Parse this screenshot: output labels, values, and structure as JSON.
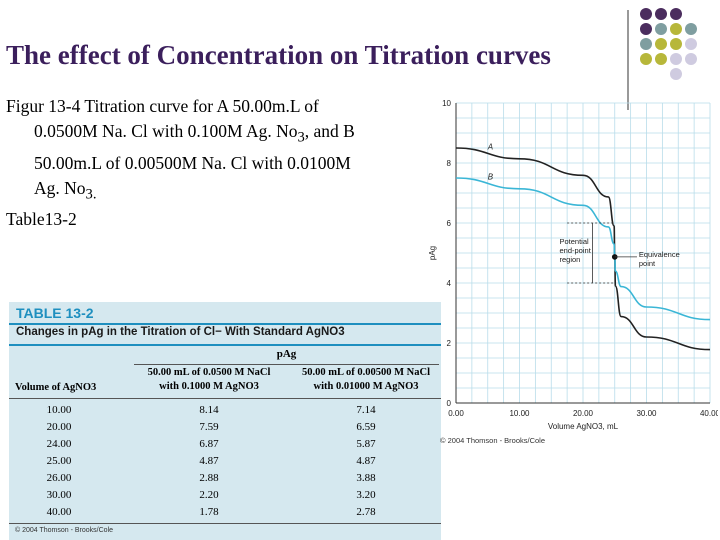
{
  "slide": {
    "title": "The effect of Concentration on Titration curves",
    "caption": {
      "line1": "Figur 13-4 Titration curve for A 50.00m.L of",
      "line2a": "0.0500M Na. Cl with 0.100M Ag. No",
      "line2sub": "3",
      "line2b": ", and B",
      "line3": "50.00m.L of 0.00500M Na. Cl with 0.0100M",
      "line4a": "Ag. No",
      "line4sub": "3.",
      "line5": "Table13-2"
    }
  },
  "decor": {
    "colors": {
      "purple": "#4b2d5e",
      "teal": "#7f9ea0",
      "olive": "#b7b73a",
      "lavender": "#cfcbe0"
    },
    "grid": [
      [
        "purple",
        "purple",
        "purple",
        ""
      ],
      [
        "purple",
        "teal",
        "olive",
        "teal"
      ],
      [
        "teal",
        "olive",
        "olive",
        "lavender"
      ],
      [
        "olive",
        "olive",
        "lavender",
        "lavender"
      ],
      [
        "",
        "",
        "lavender",
        ""
      ]
    ]
  },
  "table": {
    "label": "TABLE 13-2",
    "title": "Changes in pAg in the Titration of Cl− With Standard AgNO3",
    "pag_header": "pAg",
    "col0": "Volume of AgNO3",
    "col1_line1": "50.00 mL of 0.0500 M NaCl",
    "col1_line2": "with 0.1000 M AgNO3",
    "col2_line1": "50.00 mL of 0.00500 M NaCl",
    "col2_line2": "with 0.01000 M AgNO3",
    "rows": [
      [
        "10.00",
        "8.14",
        "7.14"
      ],
      [
        "20.00",
        "7.59",
        "6.59"
      ],
      [
        "24.00",
        "6.87",
        "5.87"
      ],
      [
        "25.00",
        "4.87",
        "4.87"
      ],
      [
        "26.00",
        "2.88",
        "3.88"
      ],
      [
        "30.00",
        "2.20",
        "3.20"
      ],
      [
        "40.00",
        "1.78",
        "2.78"
      ]
    ],
    "credit": "© 2004 Thomson - Brooks/Cole"
  },
  "chart_data": {
    "type": "line",
    "xlabel": "Volume AgNO3, mL",
    "ylabel": "pAg",
    "xlim": [
      0,
      40
    ],
    "ylim": [
      0,
      10
    ],
    "x_ticks": [
      "0.00",
      "10.00",
      "20.00",
      "30.00",
      "40.00"
    ],
    "y_ticks": [
      "0",
      "2",
      "4",
      "6",
      "8",
      "10"
    ],
    "grid": true,
    "series": [
      {
        "name": "A",
        "color": "#222222",
        "x": [
          0,
          10,
          20,
          24,
          24.9,
          25,
          25.1,
          26,
          30,
          40
        ],
        "y": [
          8.5,
          8.14,
          7.59,
          6.87,
          5.9,
          4.87,
          3.9,
          2.88,
          2.2,
          1.78
        ]
      },
      {
        "name": "B",
        "color": "#3ab6d6",
        "x": [
          0,
          10,
          20,
          24,
          24.9,
          25,
          25.1,
          26,
          30,
          40
        ],
        "y": [
          7.5,
          7.14,
          6.59,
          5.87,
          5.3,
          4.87,
          4.4,
          3.88,
          3.2,
          2.78
        ]
      }
    ],
    "annotations": {
      "region_label": [
        "Potential",
        "end-point",
        "region"
      ],
      "eq_label": [
        "Equivalence",
        "point"
      ],
      "region_ymin": 4,
      "region_ymax": 6,
      "eq_x": 25,
      "eq_y": 4.87
    },
    "credit": "© 2004 Thomson - Brooks/Cole"
  }
}
